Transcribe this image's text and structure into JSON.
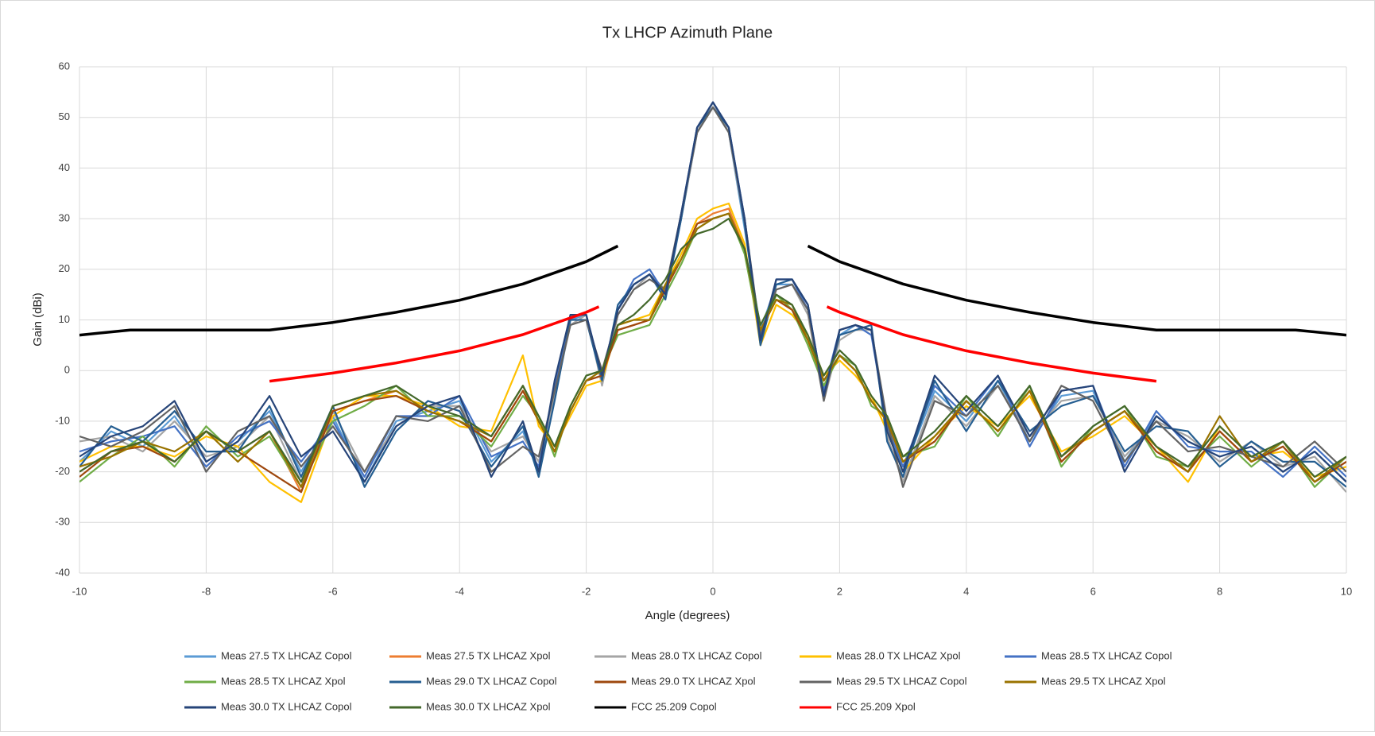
{
  "chart_data": {
    "type": "line",
    "title": "Tx LHCP Azimuth Plane",
    "x_label": "Angle (degrees)",
    "y_label": "Gain (dBi)",
    "xlim": [
      -10,
      10
    ],
    "ylim": [
      -40,
      60
    ],
    "xticks": [
      -10,
      -8,
      -6,
      -4,
      -2,
      0,
      2,
      4,
      6,
      8,
      10
    ],
    "yticks": [
      -40,
      -30,
      -20,
      -10,
      0,
      10,
      20,
      30,
      40,
      50,
      60
    ],
    "grid": true,
    "legend": "bottom",
    "x": [
      -10,
      -9.5,
      -9,
      -8.5,
      -8,
      -7.5,
      -7,
      -6.5,
      -6,
      -5.5,
      -5,
      -4.5,
      -4,
      -3.5,
      -3,
      -2.75,
      -2.5,
      -2.25,
      -2,
      -1.75,
      -1.5,
      -1.25,
      -1,
      -0.75,
      -0.5,
      -0.25,
      0,
      0.25,
      0.5,
      0.75,
      1,
      1.25,
      1.5,
      1.75,
      2,
      2.25,
      2.5,
      2.75,
      3,
      3.5,
      4,
      4.5,
      5,
      5.5,
      6,
      6.5,
      7,
      7.5,
      8,
      8.5,
      9,
      9.5,
      10
    ],
    "series": [
      {
        "name": "Meas 27.5 TX LHCAZ Copol",
        "color": "#5b9bd5",
        "values": [
          -18,
          -12,
          -15,
          -9,
          -18,
          -14,
          -8,
          -20,
          -9,
          -22,
          -10,
          -8,
          -6,
          -18,
          -12,
          -20,
          -4,
          10,
          11,
          -2,
          12,
          17,
          19,
          15,
          30,
          47,
          53,
          47,
          28,
          8,
          17,
          17,
          12,
          -5,
          7,
          9,
          8,
          -12,
          -20,
          -4,
          -10,
          -2,
          -14,
          -5,
          -4,
          -18,
          -9,
          -14,
          -17,
          -15,
          -20,
          -16,
          -22
        ]
      },
      {
        "name": "Meas 27.5 TX LHCAZ Xpol",
        "color": "#ed7d31",
        "values": [
          -20,
          -16,
          -14,
          -18,
          -12,
          -16,
          -12,
          -24,
          -8,
          -6,
          -4,
          -8,
          -10,
          -14,
          -4,
          -10,
          -16,
          -8,
          -2,
          -1,
          8,
          9,
          10,
          16,
          22,
          29,
          31,
          32,
          24,
          8,
          14,
          12,
          6,
          -2,
          3,
          0,
          -6,
          -10,
          -18,
          -14,
          -6,
          -12,
          -4,
          -18,
          -12,
          -8,
          -16,
          -20,
          -12,
          -18,
          -15,
          -22,
          -18
        ]
      },
      {
        "name": "Meas 28.0 TX LHCAZ Copol",
        "color": "#a5a5a5",
        "values": [
          -14,
          -13,
          -16,
          -10,
          -17,
          -15,
          -9,
          -22,
          -8,
          -20,
          -11,
          -7,
          -7,
          -16,
          -13,
          -18,
          -5,
          9,
          11,
          -3,
          11,
          16,
          19,
          16,
          30,
          47,
          53,
          47,
          29,
          7,
          16,
          17,
          11,
          -6,
          6,
          8,
          8,
          -13,
          -22,
          -5,
          -11,
          -3,
          -13,
          -6,
          -5,
          -17,
          -10,
          -13,
          -18,
          -14,
          -19,
          -17,
          -24
        ]
      },
      {
        "name": "Meas 28.0 TX LHCAZ Xpol",
        "color": "#ffc000",
        "values": [
          -18,
          -15,
          -15,
          -17,
          -13,
          -15,
          -22,
          -26,
          -9,
          -5,
          -5,
          -7,
          -11,
          -12,
          3,
          -11,
          -15,
          -9,
          -3,
          -2,
          9,
          10,
          11,
          17,
          23,
          30,
          32,
          33,
          25,
          5,
          13,
          11,
          7,
          -1,
          2,
          -1,
          -5,
          -12,
          -20,
          -13,
          -7,
          -11,
          -5,
          -16,
          -13,
          -9,
          -15,
          -22,
          -11,
          -17,
          -16,
          -21,
          -19
        ]
      },
      {
        "name": "Meas 28.5 TX LHCAZ Copol",
        "color": "#4472c4",
        "values": [
          -16,
          -14,
          -13,
          -11,
          -19,
          -13,
          -10,
          -18,
          -10,
          -21,
          -9,
          -9,
          -5,
          -17,
          -14,
          -19,
          -3,
          11,
          11,
          -1,
          12,
          18,
          20,
          15,
          31,
          48,
          53,
          48,
          30,
          6,
          18,
          18,
          12,
          -4,
          8,
          9,
          7,
          -11,
          -19,
          -3,
          -9,
          -1,
          -15,
          -4,
          -3,
          -19,
          -8,
          -15,
          -16,
          -16,
          -21,
          -15,
          -21
        ]
      },
      {
        "name": "Meas 28.5 TX LHCAZ Xpol",
        "color": "#70ad47",
        "values": [
          -22,
          -17,
          -13,
          -19,
          -11,
          -17,
          -13,
          -23,
          -10,
          -7,
          -3,
          -9,
          -9,
          -15,
          -5,
          -9,
          -17,
          -7,
          -1,
          0,
          7,
          8,
          9,
          15,
          21,
          28,
          30,
          31,
          23,
          7,
          15,
          12,
          5,
          -3,
          3,
          1,
          -7,
          -9,
          -17,
          -15,
          -5,
          -13,
          -3,
          -19,
          -11,
          -7,
          -17,
          -19,
          -13,
          -19,
          -14,
          -23,
          -17
        ]
      },
      {
        "name": "Meas 29.0 TX LHCAZ Copol",
        "color": "#255e91",
        "values": [
          -19,
          -11,
          -14,
          -8,
          -16,
          -16,
          -7,
          -21,
          -7,
          -23,
          -12,
          -6,
          -8,
          -19,
          -11,
          -21,
          -6,
          10,
          10,
          -2,
          13,
          17,
          19,
          14,
          30,
          48,
          52,
          48,
          29,
          5,
          17,
          18,
          13,
          -5,
          7,
          8,
          9,
          -14,
          -21,
          -2,
          -12,
          -2,
          -12,
          -7,
          -5,
          -16,
          -11,
          -12,
          -19,
          -14,
          -18,
          -18,
          -23
        ]
      },
      {
        "name": "Meas 29.0 TX LHCAZ Xpol",
        "color": "#9e480e",
        "values": [
          -21,
          -16,
          -15,
          -18,
          -12,
          -16,
          -20,
          -24,
          -8,
          -6,
          -5,
          -8,
          -10,
          -14,
          -4,
          -10,
          -16,
          -8,
          -2,
          -1,
          8,
          9,
          10,
          16,
          22,
          29,
          30,
          31,
          24,
          8,
          14,
          12,
          6,
          -2,
          3,
          0,
          -6,
          -10,
          -18,
          -14,
          -6,
          -12,
          -4,
          -18,
          -12,
          -8,
          -16,
          -20,
          -12,
          -18,
          -15,
          -22,
          -18
        ]
      },
      {
        "name": "Meas 29.5 TX LHCAZ Copol",
        "color": "#636363",
        "values": [
          -13,
          -15,
          -12,
          -7,
          -20,
          -12,
          -9,
          -19,
          -11,
          -20,
          -9,
          -10,
          -7,
          -20,
          -15,
          -17,
          -4,
          9,
          10,
          0,
          11,
          16,
          18,
          16,
          31,
          47,
          52,
          47,
          30,
          7,
          16,
          17,
          12,
          -6,
          8,
          9,
          8,
          -10,
          -23,
          -6,
          -9,
          -3,
          -14,
          -3,
          -6,
          -18,
          -10,
          -16,
          -15,
          -17,
          -19,
          -14,
          -20
        ]
      },
      {
        "name": "Meas 29.5 TX LHCAZ Xpol",
        "color": "#997300",
        "values": [
          -19,
          -17,
          -14,
          -16,
          -12,
          -18,
          -12,
          -23,
          -7,
          -5,
          -4,
          -8,
          -10,
          -13,
          -3,
          -10,
          -16,
          -8,
          -2,
          0,
          9,
          10,
          10,
          17,
          22,
          28,
          30,
          31,
          24,
          8,
          14,
          13,
          6,
          -2,
          3,
          0,
          -6,
          -10,
          -18,
          -13,
          -6,
          -12,
          -4,
          -17,
          -12,
          -8,
          -15,
          -20,
          -9,
          -18,
          -14,
          -22,
          -17
        ]
      },
      {
        "name": "Meas 30.0 TX LHCAZ Copol",
        "color": "#264478",
        "values": [
          -17,
          -13,
          -11,
          -6,
          -18,
          -14,
          -5,
          -17,
          -12,
          -22,
          -11,
          -7,
          -5,
          -21,
          -10,
          -20,
          -2,
          11,
          11,
          -1,
          12,
          17,
          19,
          15,
          31,
          48,
          53,
          48,
          30,
          6,
          18,
          18,
          13,
          -5,
          8,
          9,
          8,
          -12,
          -20,
          -1,
          -8,
          -1,
          -13,
          -4,
          -3,
          -20,
          -9,
          -14,
          -17,
          -15,
          -20,
          -16,
          -22
        ]
      },
      {
        "name": "Meas 30.0 TX LHCAZ Xpol",
        "color": "#43682b",
        "values": [
          -20,
          -16,
          -14,
          -18,
          -12,
          -16,
          -12,
          -22,
          -7,
          -5,
          -3,
          -7,
          -9,
          -13,
          -3,
          -9,
          -15,
          -7,
          -1,
          0,
          9,
          11,
          14,
          18,
          24,
          27,
          28,
          30,
          24,
          9,
          15,
          13,
          7,
          -1,
          4,
          1,
          -5,
          -9,
          -17,
          -12,
          -5,
          -11,
          -3,
          -17,
          -11,
          -7,
          -15,
          -19,
          -11,
          -17,
          -14,
          -21,
          -17
        ]
      },
      {
        "name": "FCC 25.209 Copol",
        "color": "#000000",
        "x": [
          -10,
          -9.2,
          -7,
          -6,
          -5,
          -4,
          -3,
          -2,
          -1.5,
          0,
          1.5,
          2,
          3,
          4,
          5,
          6,
          7,
          9.2,
          10
        ],
        "values": [
          7,
          8,
          8,
          9.5,
          11.5,
          13.9,
          17.1,
          21.5,
          24.6,
          null,
          24.6,
          21.5,
          17.1,
          13.9,
          11.5,
          9.5,
          8,
          8,
          7
        ]
      },
      {
        "name": "FCC 25.209 Xpol",
        "color": "#ff0000",
        "x": [
          -7,
          -6,
          -5,
          -4,
          -3,
          -2,
          -1.8,
          0,
          1.8,
          2,
          3,
          4,
          5,
          6,
          7
        ],
        "values": [
          -2.1,
          -0.5,
          1.5,
          3.9,
          7.1,
          11.5,
          12.6,
          null,
          12.6,
          11.5,
          7.1,
          3.9,
          1.5,
          -0.5,
          -2.1
        ]
      }
    ]
  }
}
